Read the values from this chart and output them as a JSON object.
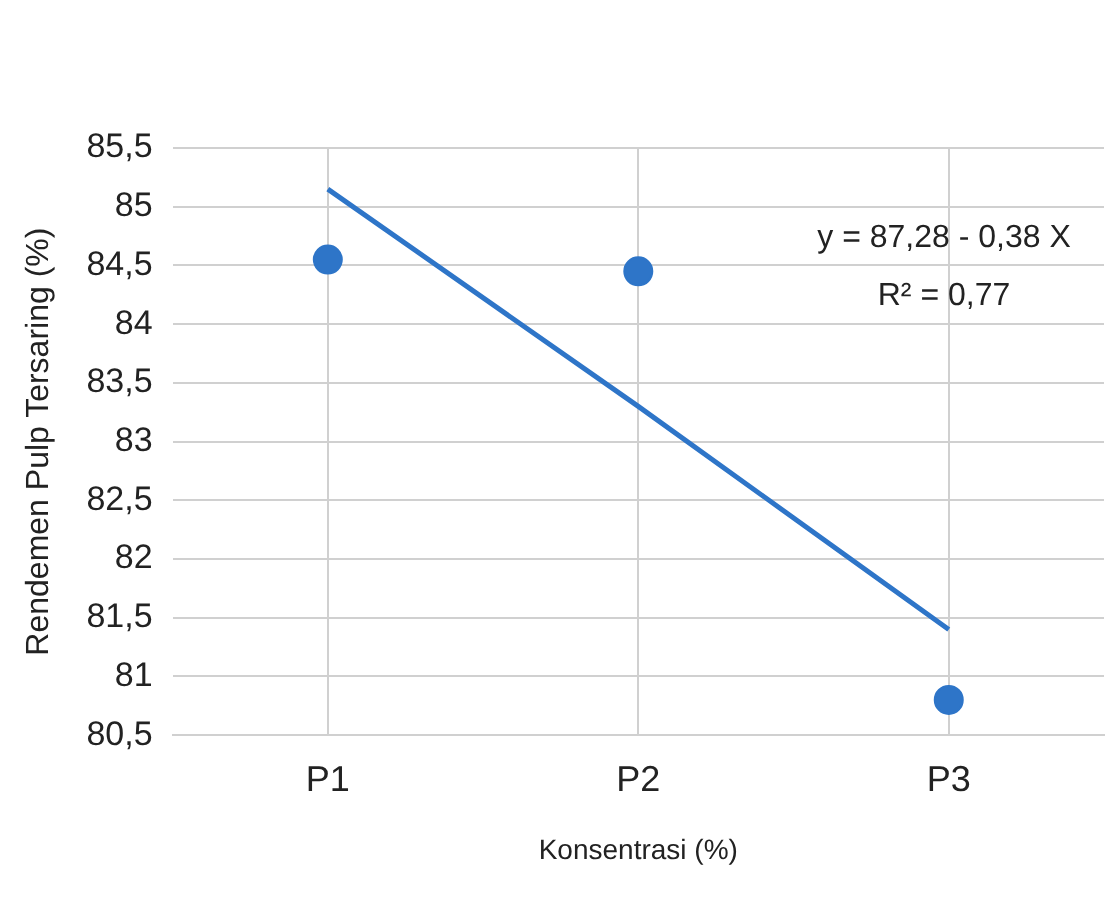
{
  "chart_data": {
    "type": "scatter",
    "xlabel": "Konsentrasi (%)",
    "ylabel": "Rendemen Pulp Tersaring (%)",
    "categories": [
      "P1",
      "P2",
      "P3"
    ],
    "series": [
      {
        "color": "#2e75c8",
        "marker": "circle",
        "values": [
          84.55,
          84.45,
          80.8
        ]
      },
      {
        "type": "line",
        "color": "#2e75c8",
        "marker": "none",
        "x": [
          "P1",
          "P2",
          "P3"
        ],
        "values": [
          85.15,
          83.3,
          81.4
        ]
      }
    ],
    "ylim": [
      80.5,
      85.5
    ],
    "yticks": [
      {
        "value": 80.5,
        "label": "80,5"
      },
      81,
      {
        "value": 81.5,
        "label": "81,5"
      },
      82,
      {
        "value": 82.5,
        "label": "82,5"
      },
      83,
      {
        "value": 83.5,
        "label": "83,5"
      },
      84,
      {
        "value": 84.5,
        "label": "84,5"
      },
      85,
      {
        "value": 85.5,
        "label": "85,5"
      }
    ],
    "grid": true,
    "legend": false,
    "line_style": "solid",
    "annotations": [
      "y = 87,28 - 0,38 X",
      "R² = 0,77"
    ]
  }
}
